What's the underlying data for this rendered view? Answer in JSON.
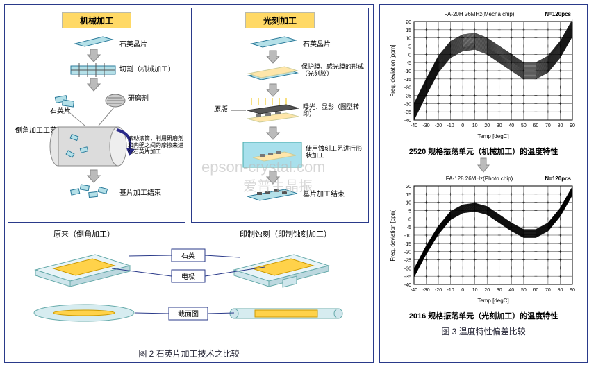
{
  "leftPanel": {
    "processA": {
      "header": "机械加工",
      "steps": [
        "石英晶片",
        "切割（机械加工）",
        "研磨剂",
        "石英片",
        "倒角加工工艺",
        "滚动滚筒，利用研磨剂和内壁之间的摩擦来进行石英片加工",
        "基片加工结束"
      ],
      "colors": {
        "header_bg": "#ffd966",
        "arrow": "#7a7a7a",
        "wafer_fill": "#b4e0e8",
        "wafer_stroke": "#2a7a9a",
        "drum_fill": "#d8d8d8",
        "drum_stroke": "#888"
      }
    },
    "processB": {
      "header": "光刻加工",
      "steps": [
        "石英晶片",
        "保护膜、感光膜的形成（光刻胶）",
        "原版",
        "曝光、显影（图型转印）",
        "使用蚀刻工艺进行形状加工",
        "基片加工结束"
      ],
      "colors": {
        "header_bg": "#ffd966",
        "arrow": "#7a7a7a",
        "layer_top": "#b4e0e8",
        "layer_resist": "#fda",
        "mask": "#555",
        "etch_fill": "#8fd0e0"
      }
    },
    "compare": {
      "title_left": "原来（倒角加工）",
      "title_right": "印制蚀刻（印制蚀刻加工）",
      "label_quartz": "石英",
      "label_electrode": "电极",
      "label_cross": "截面图",
      "colors": {
        "chip_body": "#e8f4f8",
        "chip_edge": "#6aa",
        "electrode": "#ffd24a",
        "box_border": "#2a3a8a"
      }
    },
    "caption": "图 2  石英片加工技术之比较"
  },
  "rightPanel": {
    "charts": [
      {
        "title": "FA-20H 26MHz(Mecha chip)",
        "n_label": "N=120pcs",
        "xlabel": "Temp [degC]",
        "ylabel": "Freq. deviation [ppm]",
        "xlim": [
          -40,
          90
        ],
        "xtick_step": 10,
        "ylim": [
          -40,
          20
        ],
        "ytick_step": 5,
        "colors": {
          "line": "#000",
          "grid": "#000",
          "bg": "#fff"
        },
        "curve_band": {
          "center": [
            [
              -40,
              -35
            ],
            [
              -30,
              -20
            ],
            [
              -20,
              -6
            ],
            [
              -10,
              3
            ],
            [
              0,
              7
            ],
            [
              10,
              8
            ],
            [
              20,
              5
            ],
            [
              30,
              0
            ],
            [
              40,
              -5
            ],
            [
              50,
              -10
            ],
            [
              60,
              -10
            ],
            [
              70,
              -6
            ],
            [
              80,
              3
            ],
            [
              90,
              16
            ]
          ],
          "spread": 5
        },
        "subtitle": "2520 规格振荡单元（机械加工）的温度特性"
      },
      {
        "title": "FA-128 26MHz(Photo chip)",
        "n_label": "N=120pcs",
        "xlabel": "Temp [degC]",
        "ylabel": "Freq. deviation [ppm]",
        "xlim": [
          -40,
          90
        ],
        "xtick_step": 10,
        "ylim": [
          -40,
          20
        ],
        "ytick_step": 5,
        "colors": {
          "line": "#000",
          "grid": "#000",
          "bg": "#fff"
        },
        "curve_band": {
          "center": [
            [
              -40,
              -33
            ],
            [
              -30,
              -19
            ],
            [
              -20,
              -7
            ],
            [
              -10,
              2
            ],
            [
              0,
              6
            ],
            [
              10,
              7
            ],
            [
              20,
              5
            ],
            [
              30,
              0
            ],
            [
              40,
              -5
            ],
            [
              50,
              -9
            ],
            [
              60,
              -9
            ],
            [
              70,
              -5
            ],
            [
              80,
              4
            ],
            [
              90,
              17
            ]
          ],
          "spread": 2.5
        },
        "subtitle": "2016 规格振荡单元（光刻加工）的温度特性"
      }
    ],
    "caption": "图 3  温度特性偏差比较"
  },
  "watermark": "epson-crystal.com",
  "watermark2": "爱普生晶振"
}
